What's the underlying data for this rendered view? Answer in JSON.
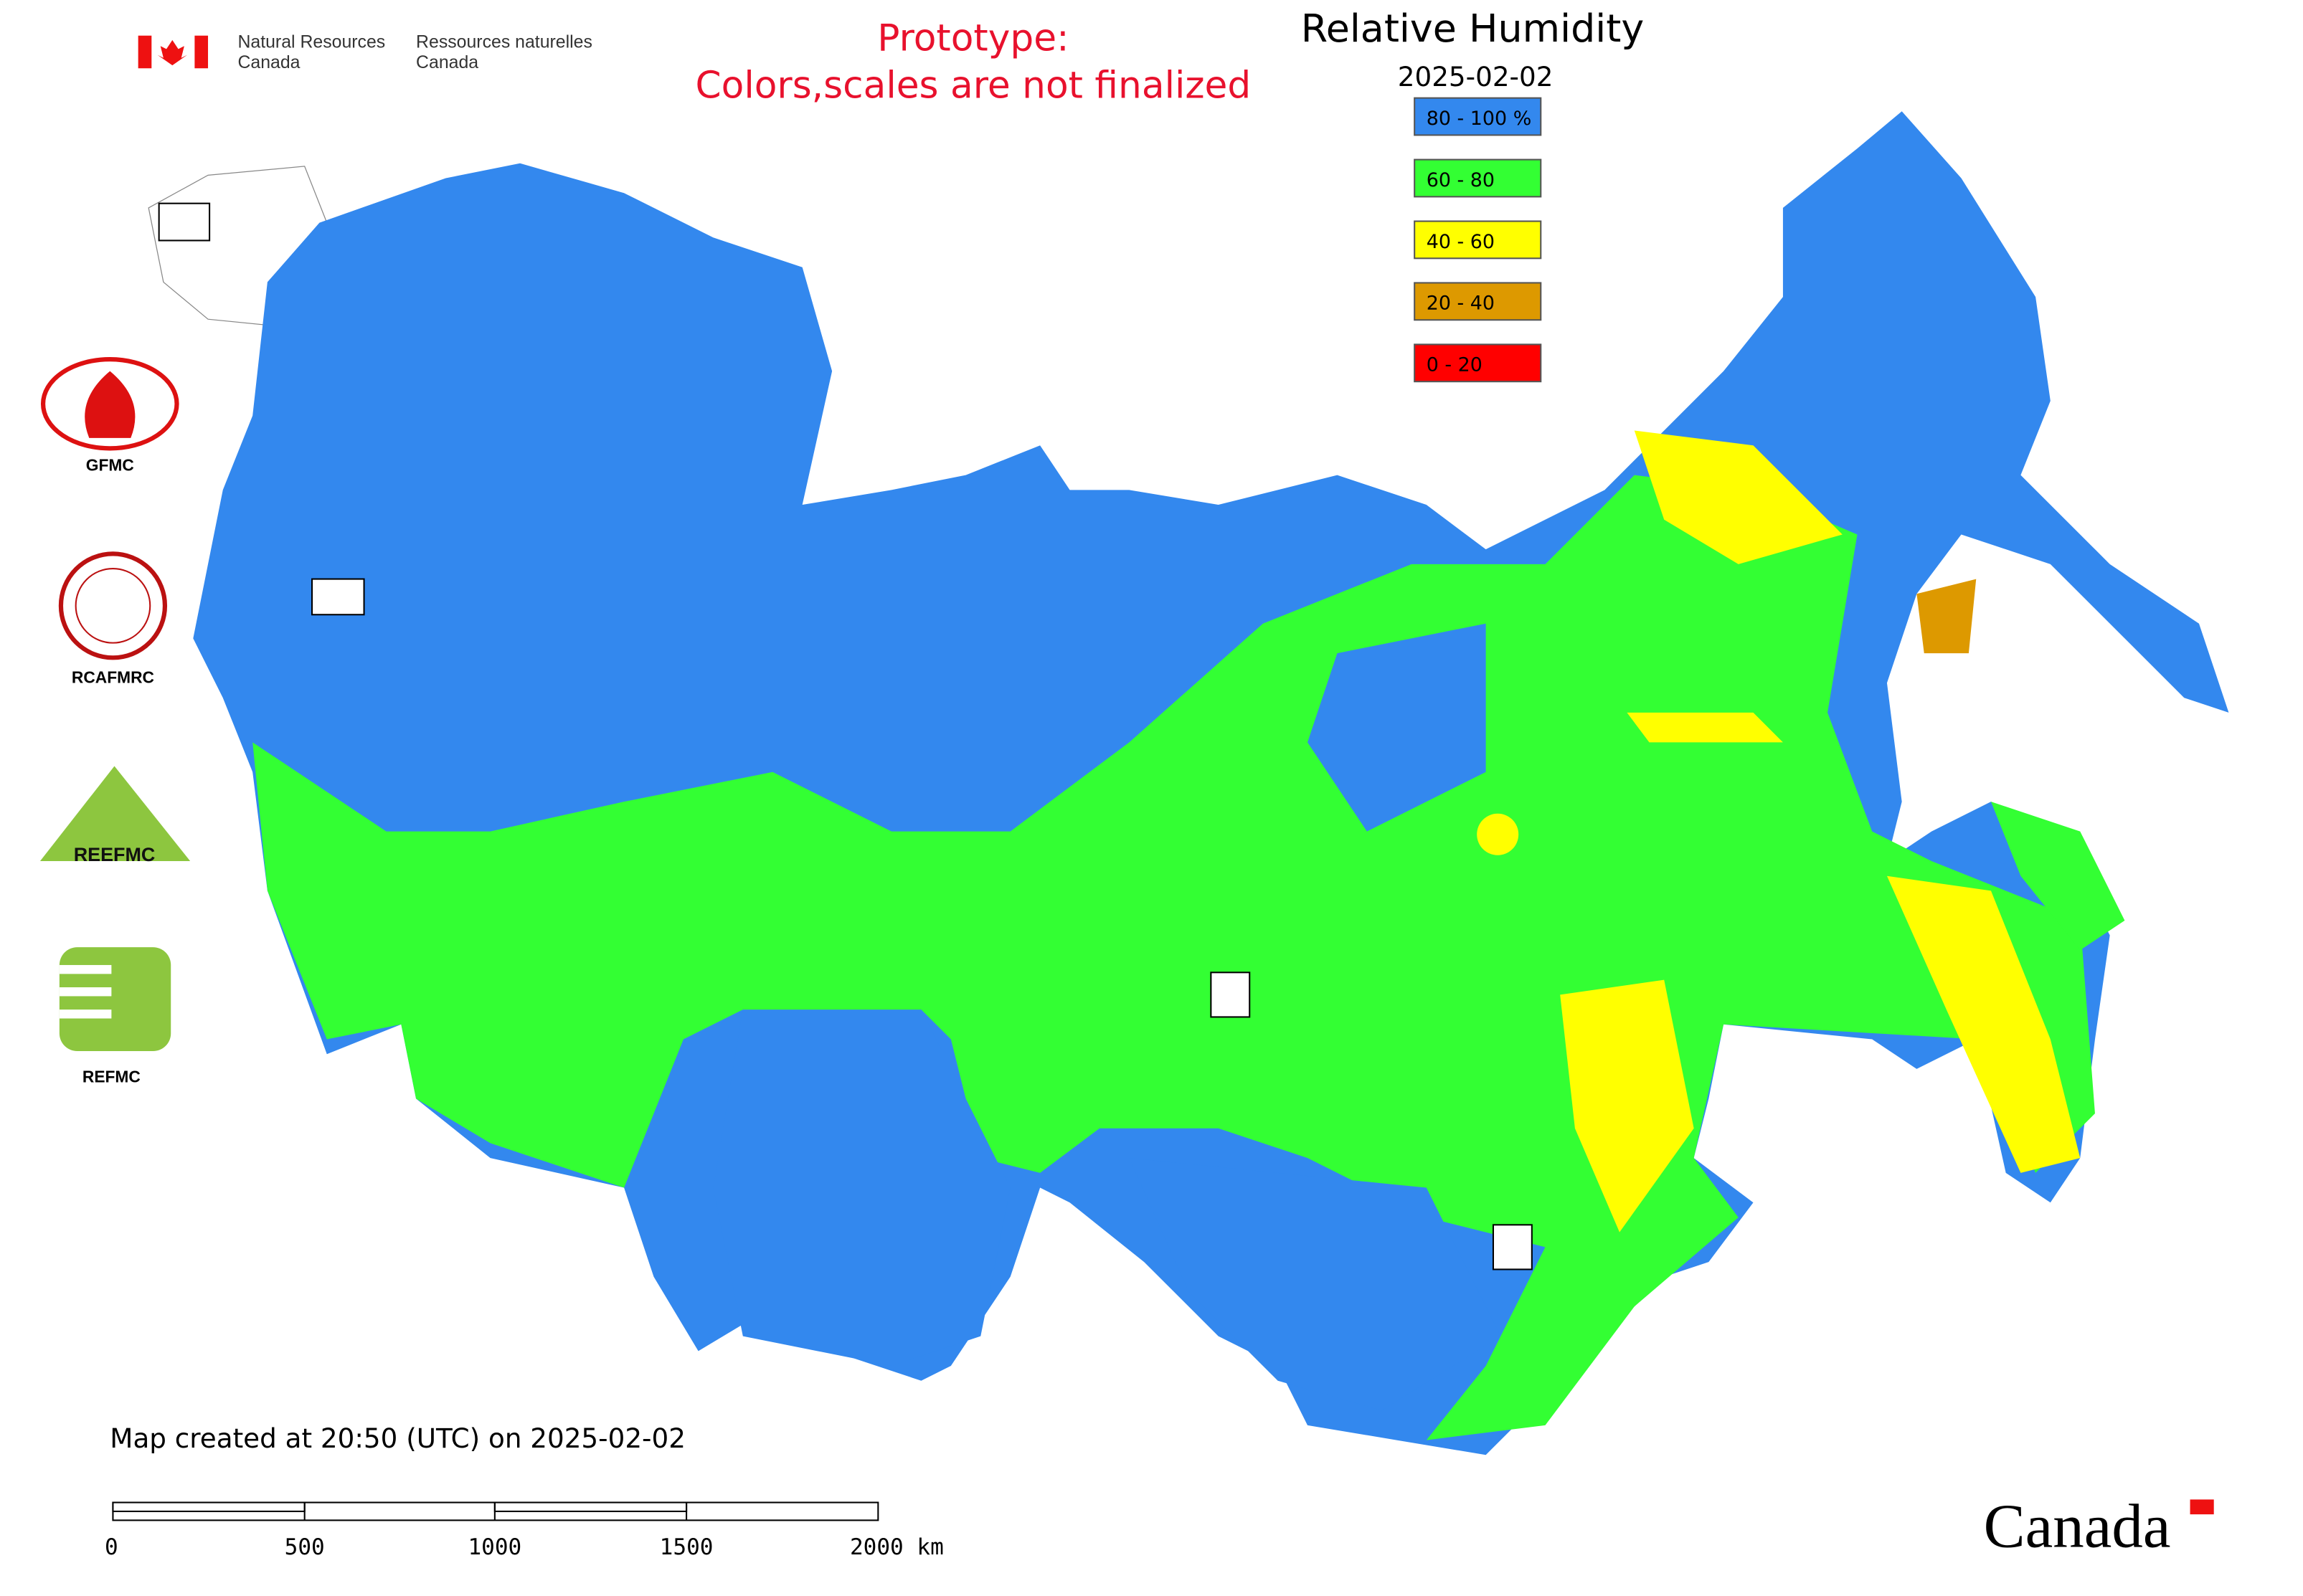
{
  "header": {
    "agency_en": [
      "Natural Resources",
      "Canada"
    ],
    "agency_fr": [
      "Ressources naturelles",
      "Canada"
    ],
    "notice": [
      "Prototype:",
      "Colors,scales are not finalized"
    ]
  },
  "map": {
    "title": "Relative Humidity",
    "date": "2025-02-02",
    "legend": [
      {
        "label": "80 - 100 %",
        "color": "#3388ee"
      },
      {
        "label": "60 - 80",
        "color": "#33ff33"
      },
      {
        "label": "40 - 60",
        "color": "#ffff00"
      },
      {
        "label": "20 - 40",
        "color": "#dd9900"
      },
      {
        "label": "0 - 20",
        "color": "#ff0000"
      }
    ],
    "footer": "Map created at 20:50 (UTC) on 2025-02-02",
    "scale_bar": [
      "0",
      "500",
      "1000",
      "1500",
      "2000 km"
    ]
  },
  "logos": [
    "GFMC",
    "RCAFMRC",
    "REFMC"
  ],
  "wordmark": "Canada"
}
